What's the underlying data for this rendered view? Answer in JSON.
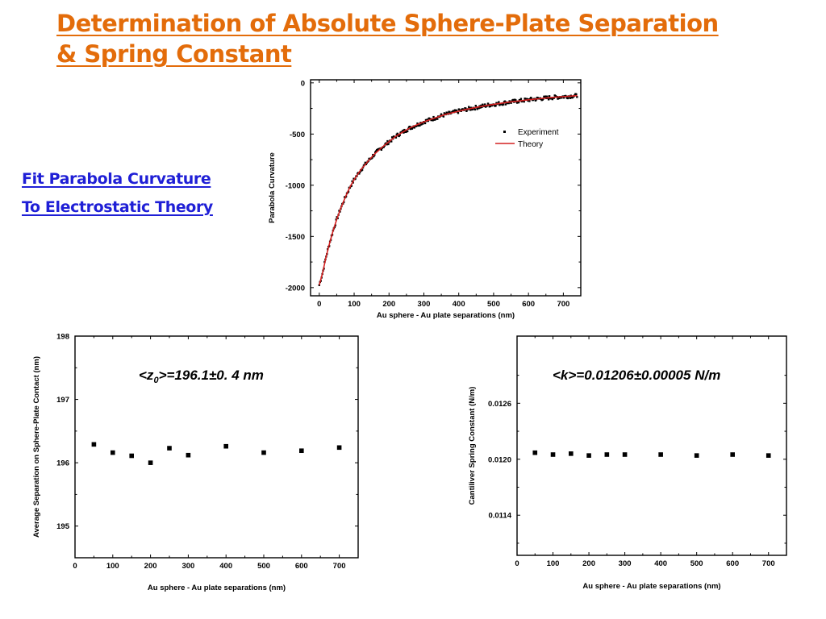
{
  "slide": {
    "title_line1": "Determination of Absolute Sphere-Plate Separation",
    "title_line2": "& Spring Constant",
    "side_line1": "Fit Parabola Curvature",
    "side_line2": "To Electrostatic Theory"
  },
  "colors": {
    "title": "#e36c0a",
    "side_text": "#1f1fd6",
    "theory_line": "#d42020",
    "marker": "#000000"
  },
  "chart_data": [
    {
      "type": "line",
      "xlabel": "Au sphere - Au plate separations (nm)",
      "ylabel": "Parabola Curvature",
      "xlim": [
        -25,
        750
      ],
      "ylim": [
        -2080,
        30
      ],
      "xticks": [
        0,
        100,
        200,
        300,
        400,
        500,
        600,
        700
      ],
      "yticks": [
        0,
        -500,
        -1000,
        -1500,
        -2000
      ],
      "legend": "right",
      "series": [
        {
          "name": "Experiment",
          "style": "dense-markers",
          "x": [
            0,
            10,
            20,
            30,
            40,
            50,
            60,
            70,
            80,
            90,
            100,
            120,
            140,
            160,
            180,
            200,
            220,
            240,
            260,
            280,
            300,
            330,
            360,
            390,
            420,
            450,
            480,
            510,
            540,
            570,
            600,
            630,
            660,
            690,
            720,
            740
          ],
          "y": [
            -1975,
            -1850,
            -1690,
            -1560,
            -1440,
            -1335,
            -1240,
            -1155,
            -1075,
            -1005,
            -945,
            -845,
            -765,
            -690,
            -630,
            -575,
            -520,
            -480,
            -440,
            -410,
            -380,
            -345,
            -310,
            -285,
            -260,
            -240,
            -220,
            -205,
            -190,
            -178,
            -165,
            -155,
            -145,
            -137,
            -130,
            -125
          ]
        },
        {
          "name": "Theory",
          "style": "line",
          "x": [
            0,
            10,
            20,
            30,
            40,
            50,
            60,
            70,
            80,
            90,
            100,
            120,
            140,
            160,
            180,
            200,
            220,
            240,
            260,
            280,
            300,
            330,
            360,
            390,
            420,
            450,
            480,
            510,
            540,
            570,
            600,
            630,
            660,
            690,
            720,
            740
          ],
          "y": [
            -1975,
            -1850,
            -1690,
            -1560,
            -1440,
            -1335,
            -1240,
            -1155,
            -1075,
            -1005,
            -945,
            -845,
            -765,
            -690,
            -630,
            -575,
            -520,
            -480,
            -440,
            -410,
            -380,
            -345,
            -310,
            -285,
            -260,
            -240,
            -220,
            -205,
            -190,
            -178,
            -165,
            -155,
            -145,
            -137,
            -130,
            -125
          ]
        }
      ]
    },
    {
      "type": "scatter",
      "xlabel": "Au sphere - Au plate separations (nm)",
      "ylabel": "Average Separation on Sphere-Plate Contact (nm)",
      "xlim": [
        0,
        750
      ],
      "ylim": [
        194.5,
        198
      ],
      "xticks": [
        0,
        100,
        200,
        300,
        400,
        500,
        600,
        700
      ],
      "yticks": [
        195,
        196,
        197,
        198
      ],
      "annotation": "=196.1±0. 4 nm",
      "annotation_var": "z",
      "annotation_sub": "0",
      "series": [
        {
          "x": [
            50,
            100,
            150,
            200,
            250,
            300,
            400,
            500,
            600,
            700
          ],
          "y": [
            196.29,
            196.16,
            196.11,
            196.0,
            196.23,
            196.12,
            196.26,
            196.16,
            196.19,
            196.24
          ]
        }
      ]
    },
    {
      "type": "scatter",
      "xlabel": "Au sphere - Au plate separations (nm)",
      "ylabel": "Cantiliver Spring Constant (N/m)",
      "xlim": [
        0,
        750
      ],
      "ylim": [
        0.01097,
        0.01332
      ],
      "xticks": [
        0,
        100,
        200,
        300,
        400,
        500,
        600,
        700
      ],
      "yticks": [
        0.0114,
        0.012,
        0.0126
      ],
      "yticklabels": [
        "0.0114",
        "0.0120",
        "0.0126"
      ],
      "annotation": "<k>=0.01206±0.00005 N/m",
      "series": [
        {
          "x": [
            50,
            100,
            150,
            200,
            250,
            300,
            400,
            500,
            600,
            700
          ],
          "y": [
            0.01207,
            0.01205,
            0.01206,
            0.01204,
            0.01205,
            0.01205,
            0.01205,
            0.01204,
            0.01205,
            0.01204
          ]
        }
      ]
    }
  ]
}
